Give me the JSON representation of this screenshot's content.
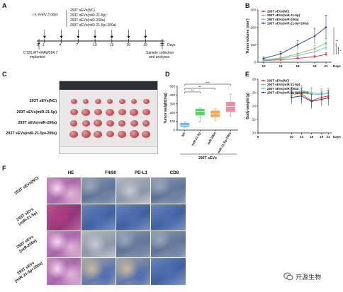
{
  "panel_letters": [
    "A",
    "B",
    "C",
    "D",
    "E",
    "F"
  ],
  "timeline": {
    "schedule": "i.v. every 3 days",
    "treatments": [
      "293T sEVs(NC)",
      "293T sEVs(miR-21-5p)",
      "293T sEVs(miR-200a)",
      "293T sEVs(miR-21-5p+200a)"
    ],
    "ticks": [
      "0",
      "1",
      "4",
      "7",
      "10",
      "13",
      "16",
      "19",
      "22"
    ],
    "unit": "Days",
    "implant_line1": "CT26.WT+RAW264.7",
    "implant_line2": "implanted",
    "endpoint_line1": "Sample collection",
    "endpoint_line2": "and analyses"
  },
  "photo": {
    "group_labels": [
      "293T sEVs(NC)",
      "293T sEVs(miR-21-5p)",
      "293T sEVs(miR-200a)",
      "293T sEVs(miR-21-5p+200a)"
    ],
    "per_row": 7
  },
  "histology": {
    "columns": [
      "HE",
      "F4/80",
      "PD-L1",
      "CD8"
    ],
    "rows": [
      "293T sEVs(NC)",
      "293T sEVs\n(miR-21-5p)",
      "293T sEVs\n(miR-200a)",
      "293T sEVs\n(miR-21-5p+200a)"
    ]
  },
  "watermark": "开源生物",
  "colors": {
    "nc": "#e8343b",
    "mir21": "#8ac653",
    "mir200a": "#6fc2d9",
    "combo": "#2b3a8f",
    "box_nc": "#6fb2e0",
    "box_mir21": "#5fcf6a",
    "box_mir200a": "#f7a553",
    "box_combo": "#f08ba6"
  },
  "chart_data": [
    {
      "panel": "B",
      "type": "line",
      "ylabel": "Tumor volume (mm³)",
      "xlabel": "Days",
      "x": [
        10,
        13,
        16,
        19,
        21
      ],
      "xticks": [
        "10",
        "13",
        "16",
        "19",
        "21"
      ],
      "yticks": [
        0,
        100,
        200,
        300
      ],
      "ylim": [
        0,
        300
      ],
      "legend": "top-left",
      "series": [
        {
          "name": "293T sEVs(NC)",
          "values": [
            10,
            14,
            22,
            32,
            45
          ],
          "err": [
            4,
            5,
            6,
            8,
            10
          ]
        },
        {
          "name": "293T sEVs(miR-21-5p)",
          "values": [
            14,
            24,
            48,
            78,
            110
          ],
          "err": [
            5,
            8,
            12,
            18,
            25
          ]
        },
        {
          "name": "293T sEVs(miR-200a)",
          "values": [
            12,
            20,
            38,
            60,
            85
          ],
          "err": [
            4,
            7,
            10,
            14,
            20
          ]
        },
        {
          "name": "293T sEVs(miR-21-5p+200a)",
          "values": [
            22,
            48,
            100,
            150,
            200
          ],
          "err": [
            8,
            14,
            25,
            45,
            70
          ]
        }
      ],
      "significance": [
        "**",
        "*",
        "*"
      ]
    },
    {
      "panel": "D",
      "type": "box",
      "ylabel": "Tumor weight(mg)",
      "xlabel": "293T sEVs",
      "categories": [
        "NC",
        "miR-21-5p",
        "miR-200a",
        "miR-21-5p+200a"
      ],
      "yticks": [
        0,
        100,
        200,
        300,
        400,
        500
      ],
      "ylim": [
        0,
        500
      ],
      "boxes": [
        {
          "min": 30,
          "q1": 40,
          "median": 55,
          "q3": 80,
          "max": 95
        },
        {
          "min": 100,
          "q1": 170,
          "median": 215,
          "q3": 240,
          "max": 250
        },
        {
          "min": 110,
          "q1": 150,
          "median": 185,
          "q3": 220,
          "max": 245
        },
        {
          "min": 160,
          "q1": 210,
          "median": 270,
          "q3": 320,
          "max": 410
        }
      ],
      "significance": [
        "**",
        "**",
        "***"
      ]
    },
    {
      "panel": "E",
      "type": "line",
      "ylabel": "Body weight (g)",
      "xlabel": "Days",
      "x": [
        10,
        13,
        16,
        19,
        21
      ],
      "xticks": [
        "0",
        "10",
        "13",
        "16",
        "19",
        "21"
      ],
      "yticks": [
        20,
        22,
        24,
        26,
        28
      ],
      "ylim": [
        20,
        28
      ],
      "legend": "top-left",
      "series": [
        {
          "name": "293T sEVs(NC)",
          "values": [
            26.0,
            25.8,
            24.8,
            25.3,
            25.5
          ],
          "err": [
            0.8,
            0.9,
            1.0,
            0.9,
            0.8
          ]
        },
        {
          "name": "293T sEVs(miR-21-5p)",
          "values": [
            25.6,
            26.0,
            25.8,
            25.7,
            26.0
          ],
          "err": [
            0.6,
            0.7,
            0.8,
            0.7,
            0.7
          ]
        },
        {
          "name": "293T sEVs(miR-200a)",
          "values": [
            25.8,
            26.3,
            26.0,
            25.8,
            25.9
          ],
          "err": [
            0.6,
            0.8,
            0.8,
            0.8,
            0.6
          ]
        },
        {
          "name": "293T sEVs(miR-21-5p+200a)",
          "values": [
            25.3,
            25.5,
            24.7,
            25.0,
            25.2
          ],
          "err": [
            1.0,
            1.2,
            1.1,
            1.0,
            1.1
          ]
        }
      ]
    }
  ]
}
